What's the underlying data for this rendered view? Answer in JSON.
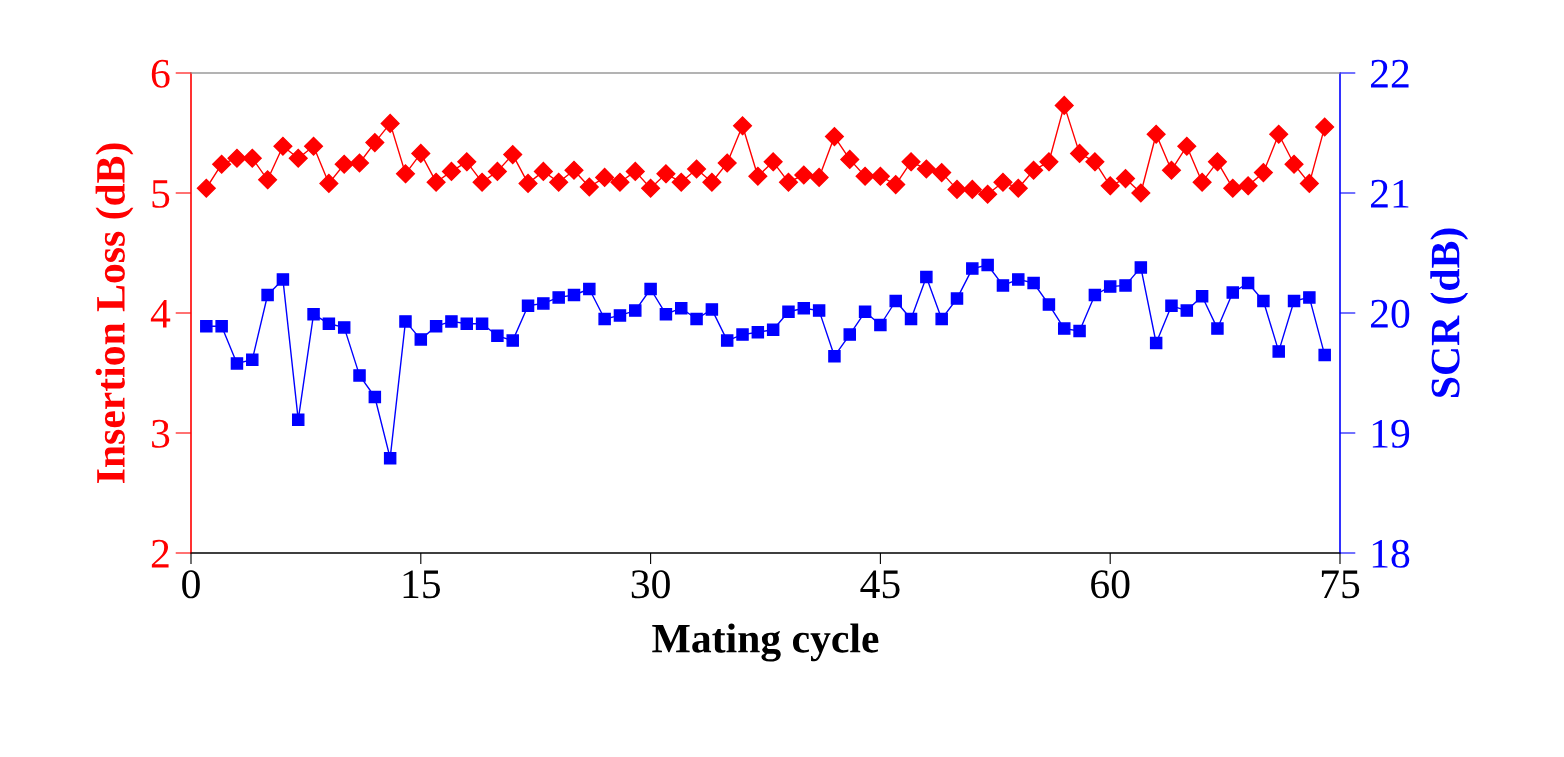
{
  "chart_data": {
    "type": "line",
    "xlabel": "Mating cycle",
    "ylabel": "Insertion Loss (dB)",
    "y2label": "SCR (dB)",
    "x": [
      1,
      2,
      3,
      4,
      5,
      6,
      7,
      8,
      9,
      10,
      11,
      12,
      13,
      14,
      15,
      16,
      17,
      18,
      19,
      20,
      21,
      22,
      23,
      24,
      25,
      26,
      27,
      28,
      29,
      30,
      31,
      32,
      33,
      34,
      35,
      36,
      37,
      38,
      39,
      40,
      41,
      42,
      43,
      44,
      45,
      46,
      47,
      48,
      49,
      50,
      51,
      52,
      53,
      54,
      55,
      56,
      57,
      58,
      59,
      60,
      61,
      62,
      63,
      64,
      65,
      66,
      67,
      68,
      69,
      70,
      71,
      72,
      73,
      74
    ],
    "xlim": [
      0,
      75
    ],
    "xticks": [
      0,
      15,
      30,
      45,
      60,
      75
    ],
    "ylim": [
      2,
      6
    ],
    "yticks": [
      2,
      3,
      4,
      5,
      6
    ],
    "y2lim": [
      18,
      22
    ],
    "y2ticks": [
      18,
      19,
      20,
      21,
      22
    ],
    "grid": false,
    "legend": false,
    "series": [
      {
        "color": "#ff0000",
        "marker": "diamond",
        "values": [
          5.04,
          5.24,
          5.29,
          5.29,
          5.11,
          5.39,
          5.29,
          5.39,
          5.08,
          5.24,
          5.25,
          5.42,
          5.58,
          5.16,
          5.33,
          5.09,
          5.18,
          5.26,
          5.09,
          5.18,
          5.32,
          5.08,
          5.18,
          5.09,
          5.19,
          5.05,
          5.13,
          5.09,
          5.18,
          5.04,
          5.16,
          5.09,
          5.2,
          5.09,
          5.25,
          5.56,
          5.14,
          5.26,
          5.09,
          5.15,
          5.13,
          5.47,
          5.28,
          5.14,
          5.14,
          5.07,
          5.26,
          5.2,
          5.17,
          5.03,
          5.03,
          4.99,
          5.09,
          5.04,
          5.19,
          5.26,
          5.73,
          5.33,
          5.26,
          5.06,
          5.12,
          5.0,
          5.49,
          5.19,
          5.39,
          5.09,
          5.26,
          5.04,
          5.06,
          5.17,
          5.49,
          5.24,
          5.08,
          5.55
        ]
      },
      {
        "color": "#0000ff",
        "marker": "square",
        "axis": "y2",
        "values": [
          19.89,
          19.89,
          19.58,
          19.61,
          20.15,
          20.28,
          19.11,
          19.99,
          19.91,
          19.88,
          19.48,
          19.3,
          18.79,
          19.93,
          19.78,
          19.89,
          19.93,
          19.91,
          19.91,
          19.81,
          19.77,
          20.06,
          20.08,
          20.13,
          20.15,
          20.2,
          19.95,
          19.98,
          20.02,
          20.2,
          19.99,
          20.04,
          19.95,
          20.03,
          19.77,
          19.82,
          19.84,
          19.86,
          20.01,
          20.04,
          20.02,
          19.64,
          19.82,
          20.01,
          19.9,
          20.1,
          19.95,
          20.3,
          19.95,
          20.12,
          20.37,
          20.4,
          20.23,
          20.28,
          20.25,
          20.07,
          19.87,
          19.85,
          20.15,
          20.22,
          20.23,
          20.38,
          19.75,
          20.06,
          20.02,
          20.14,
          19.87,
          20.17,
          20.25,
          20.1,
          19.68,
          20.1,
          20.13,
          19.65
        ]
      }
    ]
  }
}
